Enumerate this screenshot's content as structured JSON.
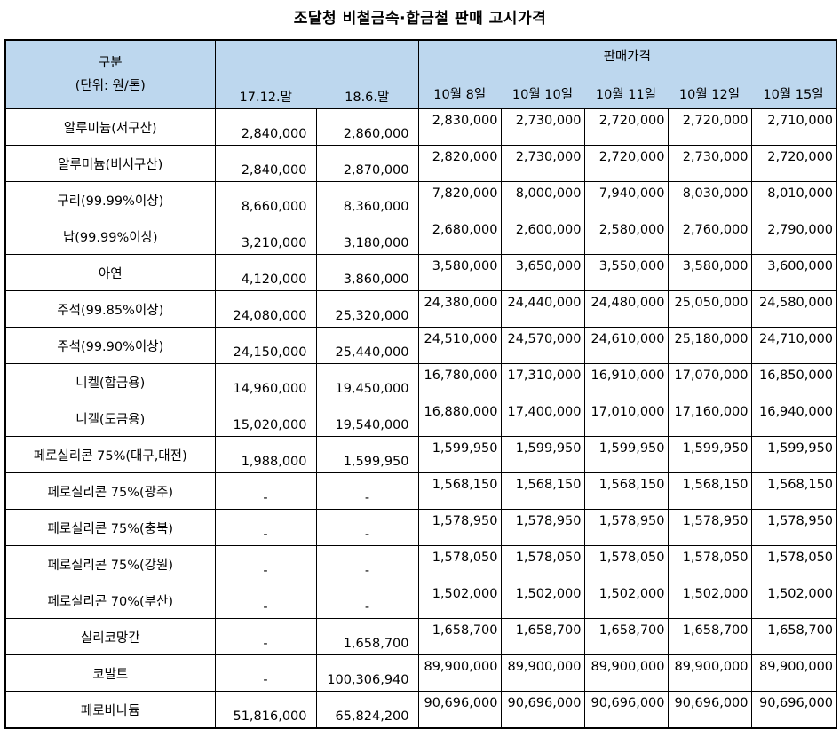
{
  "title": "조달청 비철금속·합금철 판매 고시가격",
  "header": {
    "category_label": "구분",
    "unit_label": "(단위: 원/톤)",
    "group_label": "판매가격",
    "columns": [
      "17.12.말",
      "18.6.말",
      "10월 8일",
      "10월 10일",
      "10월 11일",
      "10월 12일",
      "10월 15일"
    ]
  },
  "rows": [
    {
      "name": "알루미늄(서구산)",
      "values": [
        "2,840,000",
        "2,860,000",
        "2,830,000",
        "2,730,000",
        "2,720,000",
        "2,720,000",
        "2,710,000"
      ]
    },
    {
      "name": "알루미늄(비서구산)",
      "values": [
        "2,840,000",
        "2,870,000",
        "2,820,000",
        "2,730,000",
        "2,720,000",
        "2,730,000",
        "2,720,000"
      ]
    },
    {
      "name": "구리(99.99%이상)",
      "values": [
        "8,660,000",
        "8,360,000",
        "7,820,000",
        "8,000,000",
        "7,940,000",
        "8,030,000",
        "8,010,000"
      ]
    },
    {
      "name": "납(99.99%이상)",
      "values": [
        "3,210,000",
        "3,180,000",
        "2,680,000",
        "2,600,000",
        "2,580,000",
        "2,760,000",
        "2,790,000"
      ]
    },
    {
      "name": "아연",
      "values": [
        "4,120,000",
        "3,860,000",
        "3,580,000",
        "3,650,000",
        "3,550,000",
        "3,580,000",
        "3,600,000"
      ]
    },
    {
      "name": "주석(99.85%이상)",
      "values": [
        "24,080,000",
        "25,320,000",
        "24,380,000",
        "24,440,000",
        "24,480,000",
        "25,050,000",
        "24,580,000"
      ]
    },
    {
      "name": "주석(99.90%이상)",
      "values": [
        "24,150,000",
        "25,440,000",
        "24,510,000",
        "24,570,000",
        "24,610,000",
        "25,180,000",
        "24,710,000"
      ]
    },
    {
      "name": "니켈(합금용)",
      "values": [
        "14,960,000",
        "19,450,000",
        "16,780,000",
        "17,310,000",
        "16,910,000",
        "17,070,000",
        "16,850,000"
      ]
    },
    {
      "name": "니켈(도금용)",
      "values": [
        "15,020,000",
        "19,540,000",
        "16,880,000",
        "17,400,000",
        "17,010,000",
        "17,160,000",
        "16,940,000"
      ]
    },
    {
      "name": "페로실리콘 75%(대구,대전)",
      "values": [
        "1,988,000",
        "1,599,950",
        "1,599,950",
        "1,599,950",
        "1,599,950",
        "1,599,950",
        "1,599,950"
      ]
    },
    {
      "name": "페로실리콘 75%(광주)",
      "values": [
        "-",
        "-",
        "1,568,150",
        "1,568,150",
        "1,568,150",
        "1,568,150",
        "1,568,150"
      ]
    },
    {
      "name": "페로실리콘 75%(충북)",
      "values": [
        "-",
        "-",
        "1,578,950",
        "1,578,950",
        "1,578,950",
        "1,578,950",
        "1,578,950"
      ]
    },
    {
      "name": "페로실리콘 75%(강원)",
      "values": [
        "-",
        "-",
        "1,578,050",
        "1,578,050",
        "1,578,050",
        "1,578,050",
        "1,578,050"
      ]
    },
    {
      "name": "페로실리콘 70%(부산)",
      "values": [
        "-",
        "-",
        "1,502,000",
        "1,502,000",
        "1,502,000",
        "1,502,000",
        "1,502,000"
      ]
    },
    {
      "name": "실리코망간",
      "values": [
        "-",
        "1,658,700",
        "1,658,700",
        "1,658,700",
        "1,658,700",
        "1,658,700",
        "1,658,700"
      ]
    },
    {
      "name": "코발트",
      "values": [
        "-",
        "100,306,940",
        "89,900,000",
        "89,900,000",
        "89,900,000",
        "89,900,000",
        "89,900,000"
      ]
    },
    {
      "name": "페로바나듐",
      "values": [
        "51,816,000",
        "65,824,200",
        "90,696,000",
        "90,696,000",
        "90,696,000",
        "90,696,000",
        "90,696,000"
      ]
    }
  ],
  "colors": {
    "header_background": "#bdd7ee",
    "border": "#000000"
  }
}
